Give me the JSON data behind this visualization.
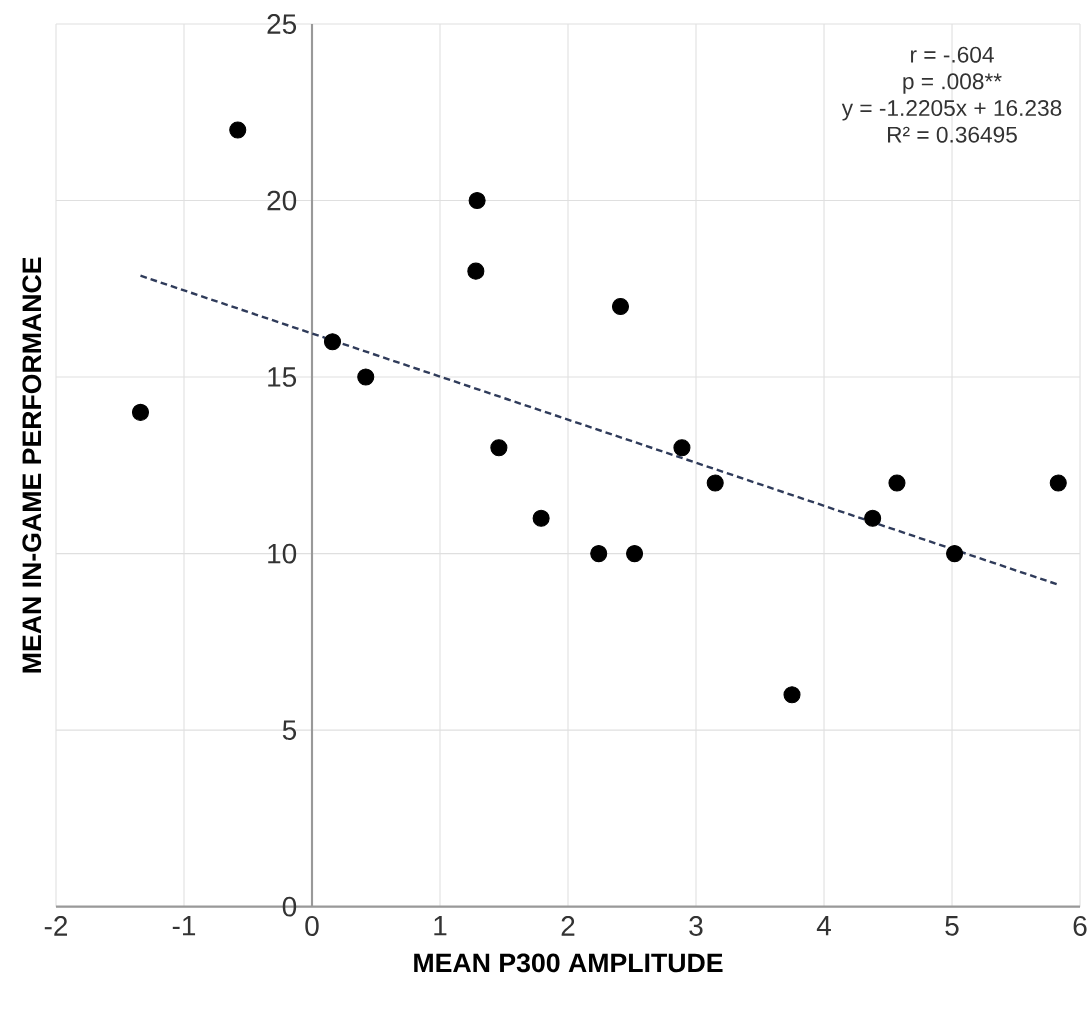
{
  "chart_data": {
    "type": "scatter",
    "xlabel": "MEAN P300 AMPLITUDE",
    "ylabel": "MEAN IN-GAME PERFORMANCE",
    "annotations": [
      "r = -.604",
      "p = .008**",
      "y = -1.2205x + 16.238",
      "R² = 0.36495"
    ],
    "xlim": [
      -2,
      6
    ],
    "ylim": [
      0,
      25
    ],
    "xticks": [
      -2,
      -1,
      0,
      1,
      2,
      3,
      4,
      5,
      6
    ],
    "yticks": [
      0,
      5,
      10,
      15,
      20,
      25
    ],
    "grid": true,
    "series": [
      {
        "color": "#000000",
        "marker": "circle",
        "x": [
          -1.34,
          -0.58,
          0.16,
          0.42,
          1.28,
          1.29,
          1.46,
          1.79,
          2.24,
          2.41,
          2.52,
          2.89,
          3.15,
          3.75,
          4.38,
          4.57,
          5.02,
          5.83
        ],
        "values": [
          14,
          22,
          16,
          15,
          18,
          20,
          13,
          11,
          10,
          17,
          10,
          13,
          12,
          6,
          11,
          12,
          10,
          12
        ]
      },
      {
        "type": "line",
        "color": "#2f3b5a",
        "line_style": "dashed",
        "marker": "none",
        "x": [
          -1.34,
          5.83
        ],
        "values": [
          17.87,
          9.12
        ]
      }
    ]
  }
}
